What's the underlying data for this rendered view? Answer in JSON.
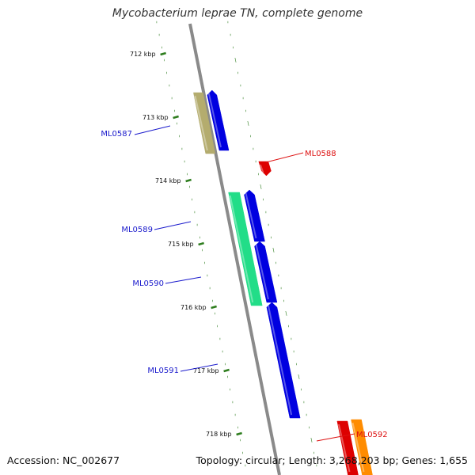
{
  "title": "Mycobacterium leprae TN, complete genome",
  "footer": {
    "accession": "Accession: NC_002677",
    "summary": "Topology: circular; Length: 3,268,203 bp; Genes: 1,655"
  },
  "colors": {
    "background": "#ffffff",
    "backbone": "#8a8a8a",
    "tick": "#2e7d1e",
    "forward_gene": "#0000e0",
    "label_blue": "#1a1acc",
    "label_red": "#dd1111",
    "rna_gene": "#dd0000",
    "orange_gene": "#ff8c00",
    "khaki_feature": "#b4ac6e",
    "green_feature": "#22dd88"
  },
  "ticks": [
    {
      "label": "712 kbp",
      "kbp": 712
    },
    {
      "label": "713 kbp",
      "kbp": 713
    },
    {
      "label": "714 kbp",
      "kbp": 714
    },
    {
      "label": "715 kbp",
      "kbp": 715
    },
    {
      "label": "716 kbp",
      "kbp": 716
    },
    {
      "label": "717 kbp",
      "kbp": 717
    },
    {
      "label": "718 kbp",
      "kbp": 718
    }
  ],
  "genes": [
    {
      "label": "ML0587",
      "strand": "forward"
    },
    {
      "label": "ML0588",
      "strand": "reverse"
    },
    {
      "label": "ML0589",
      "strand": "forward"
    },
    {
      "label": "ML0590",
      "strand": "forward"
    },
    {
      "label": "ML0591",
      "strand": "forward"
    },
    {
      "label": "ML0592",
      "strand": "reverse"
    }
  ]
}
